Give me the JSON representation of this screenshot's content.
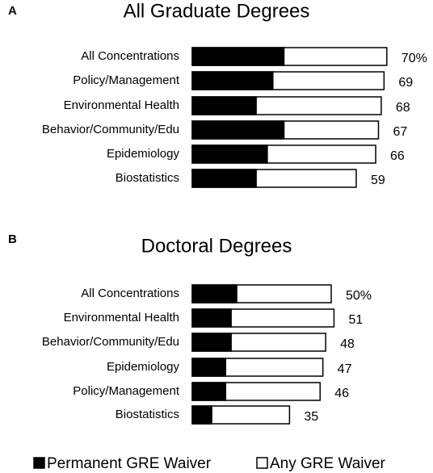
{
  "chart_data": [
    {
      "type": "bar",
      "panel": "A",
      "title": "All Graduate Degrees",
      "categories": [
        "All Concentrations",
        "Policy/Management",
        "Environmental Health",
        "Behavior/Community/Edu",
        "Epidemiology",
        "Biostatistics"
      ],
      "series": [
        {
          "name": "Any GRE Waiver",
          "color": "#ffffff",
          "values": [
            70,
            69,
            68,
            67,
            66,
            59
          ],
          "value_labels": [
            "70%",
            "69",
            "68",
            "67",
            "66",
            "59"
          ]
        },
        {
          "name": "Permanent GRE Waiver",
          "color": "#000000",
          "values": [
            33,
            29,
            23,
            33,
            27,
            23
          ]
        }
      ]
    },
    {
      "type": "bar",
      "panel": "B",
      "title": "Doctoral Degrees",
      "categories": [
        "All Concentrations",
        "Environmental Health",
        "Behavior/Community/Edu",
        "Epidemiology",
        "Policy/Management",
        "Biostatistics"
      ],
      "series": [
        {
          "name": "Any GRE Waiver",
          "color": "#ffffff",
          "values": [
            50,
            51,
            48,
            47,
            46,
            35
          ],
          "value_labels": [
            "50%",
            "51",
            "48",
            "47",
            "46",
            "35"
          ]
        },
        {
          "name": "Permanent GRE Waiver",
          "color": "#000000",
          "values": [
            16,
            14,
            14,
            12,
            12,
            7
          ]
        }
      ]
    }
  ]
}
